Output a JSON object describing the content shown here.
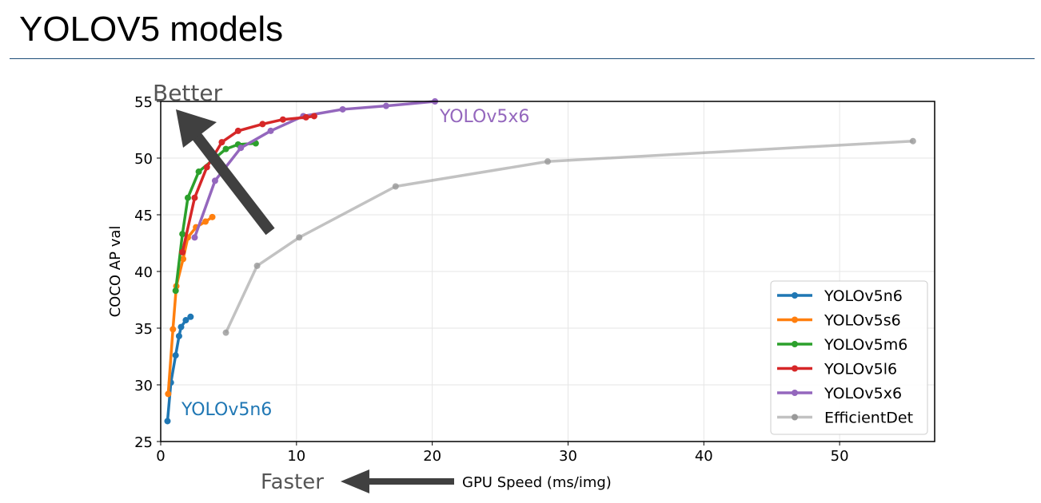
{
  "page": {
    "title": "YOLOV5 models"
  },
  "chart_data": {
    "type": "line",
    "xlabel": "GPU Speed (ms/img)",
    "ylabel": "COCO AP val",
    "xlim": [
      0,
      57
    ],
    "ylim": [
      25,
      55
    ],
    "xticks": [
      0,
      10,
      20,
      30,
      40,
      50
    ],
    "yticks": [
      25,
      30,
      35,
      40,
      45,
      50,
      55
    ],
    "grid": true,
    "legend_position": "lower-right",
    "annotations": {
      "better": "Better",
      "faster": "Faster",
      "yolov5x6": "YOLOv5x6",
      "yolov5n6": "YOLOv5n6"
    },
    "series": [
      {
        "name": "YOLOv5n6",
        "color": "#1f77b4",
        "x": [
          0.5,
          0.75,
          1.1,
          1.35,
          1.5,
          1.85,
          2.2
        ],
        "y": [
          26.8,
          30.2,
          32.6,
          34.3,
          35.1,
          35.7,
          36.0
        ]
      },
      {
        "name": "YOLOv5s6",
        "color": "#ff7f0e",
        "x": [
          0.55,
          0.9,
          1.15,
          1.65,
          2.0,
          2.6,
          3.3,
          3.8
        ],
        "y": [
          29.2,
          34.9,
          38.7,
          41.1,
          43.0,
          43.9,
          44.4,
          44.8
        ]
      },
      {
        "name": "YOLOv5m6",
        "color": "#2ca02c",
        "x": [
          1.1,
          1.6,
          2.0,
          2.8,
          4.8,
          5.7,
          7.0
        ],
        "y": [
          38.3,
          43.3,
          46.5,
          48.8,
          50.8,
          51.2,
          51.3
        ]
      },
      {
        "name": "YOLOv5l6",
        "color": "#d62728",
        "x": [
          1.6,
          2.5,
          3.4,
          4.5,
          5.7,
          7.5,
          9.0,
          10.7,
          11.3
        ],
        "y": [
          41.7,
          46.5,
          49.2,
          51.4,
          52.4,
          53.0,
          53.4,
          53.6,
          53.7
        ]
      },
      {
        "name": "YOLOv5x6",
        "color": "#9467bd",
        "x": [
          2.5,
          4.0,
          5.9,
          8.1,
          10.5,
          13.4,
          16.6,
          20.2
        ],
        "y": [
          43.0,
          48.0,
          50.9,
          52.4,
          53.7,
          54.3,
          54.6,
          55.0
        ]
      },
      {
        "name": "EfficientDet",
        "color": "#999999",
        "x": [
          4.8,
          7.1,
          10.2,
          17.3,
          28.5,
          55.4
        ],
        "y": [
          34.6,
          40.5,
          43.0,
          47.5,
          49.7,
          51.5
        ]
      }
    ]
  }
}
